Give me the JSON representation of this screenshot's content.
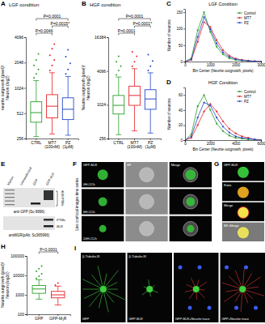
{
  "chart_data": [
    {
      "type": "box",
      "panel": "A",
      "title": "LGF condition",
      "y_label": "neurite outgrowth (pixel)/Neuron (log2)",
      "categories": [
        "CTRL",
        "MT7 (100nM)",
        "PZ (1μM)"
      ],
      "colors": [
        "#2ca02c",
        "#e8242b",
        "#2748c9"
      ],
      "whisker_low": [
        270,
        290,
        280
      ],
      "q1": [
        400,
        450,
        430
      ],
      "median": [
        520,
        620,
        570
      ],
      "q3": [
        700,
        850,
        780
      ],
      "whisker_high": [
        1250,
        1550,
        1400
      ],
      "outliers": [
        [
          1350,
          1500,
          1700,
          1900,
          2200,
          2600
        ],
        [
          1650,
          1900,
          2200,
          2500,
          3000,
          3400
        ],
        [
          1500,
          1700,
          2000,
          2400,
          2900
        ]
      ],
      "ylim": [
        256,
        4096
      ],
      "yticks": [
        256,
        512,
        1024,
        2048,
        4096
      ],
      "log": "y",
      "annotations": [
        {
          "text": "P=0.0001",
          "between": [
            "CTRL",
            "PZ (1μM)"
          ]
        },
        {
          "text": "P=0.0015*",
          "between": [
            "MT7 (100nM)",
            "PZ (1μM)"
          ]
        },
        {
          "text": "P=0.0046",
          "between": [
            "CTRL",
            "MT7 (100nM)"
          ]
        }
      ]
    },
    {
      "type": "box",
      "panel": "B",
      "title": "HGF condition",
      "y_label": "Neurite outgrowth (pixel)/Neuron (log2)",
      "categories": [
        "CTRL",
        "MT7 (100nM)",
        "PZ (1μM)"
      ],
      "colors": [
        "#2ca02c",
        "#e8242b",
        "#2748c9"
      ],
      "whisker_low": [
        300,
        350,
        320
      ],
      "q1": [
        700,
        1000,
        850
      ],
      "median": [
        1000,
        1500,
        1300
      ],
      "q3": [
        1500,
        2200,
        1900
      ],
      "whisker_high": [
        3200,
        4500,
        3800
      ],
      "outliers": [
        [
          3500,
          4200,
          5000,
          6000,
          7500
        ],
        [
          5000,
          6000,
          7500,
          9000
        ],
        [
          4200,
          5000,
          6200,
          8000
        ]
      ],
      "ylim": [
        256,
        16384
      ],
      "yticks": [
        256,
        1024,
        4096,
        16384
      ],
      "log": "y",
      "annotations": [
        {
          "text": "P=0.0001",
          "between": [
            "CTRL",
            "PZ (1μM)"
          ]
        },
        {
          "text": "P=0.0001*",
          "between": [
            "MT7 (100nM)",
            "PZ (1μM)"
          ]
        },
        {
          "text": "P=0.0001",
          "between": [
            "CTRL",
            "MT7 (100nM)"
          ]
        }
      ]
    },
    {
      "type": "line",
      "panel": "C",
      "title": "LGF Condition",
      "x_label": "Bin Center (Neurite outgrowth, pixels)",
      "y_label": "Number of neurons",
      "x": [
        0,
        250,
        500,
        750,
        1000,
        1250,
        1500,
        1750,
        2000,
        2250,
        2500,
        2750,
        3000
      ],
      "series": [
        {
          "name": "Control",
          "color": "#2ca02c",
          "values": [
            0,
            10,
            95,
            150,
            90,
            45,
            22,
            10,
            5,
            3,
            2,
            1,
            0
          ]
        },
        {
          "name": "MT7",
          "color": "#e8242b",
          "values": [
            0,
            5,
            60,
            120,
            105,
            65,
            35,
            18,
            9,
            5,
            3,
            1,
            0
          ]
        },
        {
          "name": "PZ",
          "color": "#2748c9",
          "values": [
            0,
            7,
            75,
            135,
            98,
            55,
            28,
            14,
            7,
            4,
            2,
            1,
            0
          ]
        }
      ],
      "xlim": [
        0,
        3000
      ],
      "xticks": [
        0,
        1000,
        2000,
        3000
      ],
      "ylim": [
        0,
        160
      ],
      "yticks": [
        0,
        50,
        100,
        150
      ],
      "legend": "top-right",
      "marker": "circle"
    },
    {
      "type": "line",
      "panel": "D",
      "title": "HGF Condition",
      "x_label": "Bin Center (Neurite outgrowth, pixels)",
      "y_label": "Number of neurons",
      "x": [
        0,
        500,
        1000,
        1500,
        2000,
        2500,
        3000,
        3500,
        4000,
        4500,
        5000,
        5500,
        6000
      ],
      "series": [
        {
          "name": "Control",
          "color": "#2ca02c",
          "values": [
            0,
            8,
            45,
            60,
            40,
            22,
            12,
            6,
            3,
            2,
            1,
            1,
            0
          ]
        },
        {
          "name": "MT7",
          "color": "#e8242b",
          "values": [
            0,
            3,
            20,
            38,
            48,
            38,
            25,
            15,
            9,
            5,
            3,
            1,
            0
          ]
        },
        {
          "name": "PZ",
          "color": "#2748c9",
          "values": [
            0,
            5,
            30,
            50,
            46,
            30,
            18,
            10,
            5,
            3,
            2,
            1,
            0
          ]
        }
      ],
      "xlim": [
        0,
        6000
      ],
      "xticks": [
        0,
        2000,
        4000,
        6000
      ],
      "ylim": [
        0,
        70
      ],
      "yticks": [
        0,
        20,
        40,
        60
      ],
      "legend": "top-right",
      "marker": "circle"
    },
    {
      "type": "box",
      "panel": "H",
      "y_label": "Neurite outgrowth (pixel)/Neuron (log10)",
      "categories": [
        "GFP",
        "GFP-M₁R"
      ],
      "colors": [
        "#2ca02c",
        "#e8242b"
      ],
      "whisker_low": [
        600,
        300
      ],
      "q1": [
        1200,
        700
      ],
      "median": [
        2000,
        1000
      ],
      "q3": [
        3000,
        1500
      ],
      "whisker_high": [
        6000,
        2800
      ],
      "outliers": [
        [
          7000,
          9000,
          12000,
          16000,
          22000,
          30000
        ],
        [
          3200,
          4000
        ]
      ],
      "ylim": [
        100,
        100000
      ],
      "yticks": [
        100,
        1000,
        10000,
        100000
      ],
      "log": "y",
      "annotations": [
        {
          "text": "P<0.0001",
          "between": [
            "GFP",
            "GFP-M₁R"
          ]
        }
      ]
    }
  ],
  "images": [
    {
      "panel": "E",
      "lanes": [
        "Marker",
        "Untransfected",
        "GFP",
        "GFP-M₁R"
      ],
      "bracket_label": "M₁R PTMs",
      "blots": [
        {
          "label": "anti GFP (Sc-9996)",
          "bands": []
        },
        {
          "label": "antiM1R(pAb: Sc365966)",
          "bands": [
            "-PTMs",
            "-M₁R"
          ]
        }
      ]
    },
    {
      "panel": "F",
      "side_label": "Live confocal images time series",
      "columns": [
        "GFP-M₁R",
        "BF",
        "Merge"
      ],
      "rows": [
        "0H-CCh",
        "6H-CCh",
        "24H-CCh"
      ]
    },
    {
      "panel": "G",
      "rows": [
        "GFP-M₁R",
        "Ratio",
        "Merge",
        "BF+Merge"
      ]
    },
    {
      "panel": "I",
      "headers": [
        "β-Tubulin-III",
        "β-Tubulin-III"
      ],
      "captions": [
        "GFP",
        "GFP-M₁R",
        "GFP-M₁R+Neurite trace",
        "GFP+Neurite trace"
      ]
    }
  ]
}
